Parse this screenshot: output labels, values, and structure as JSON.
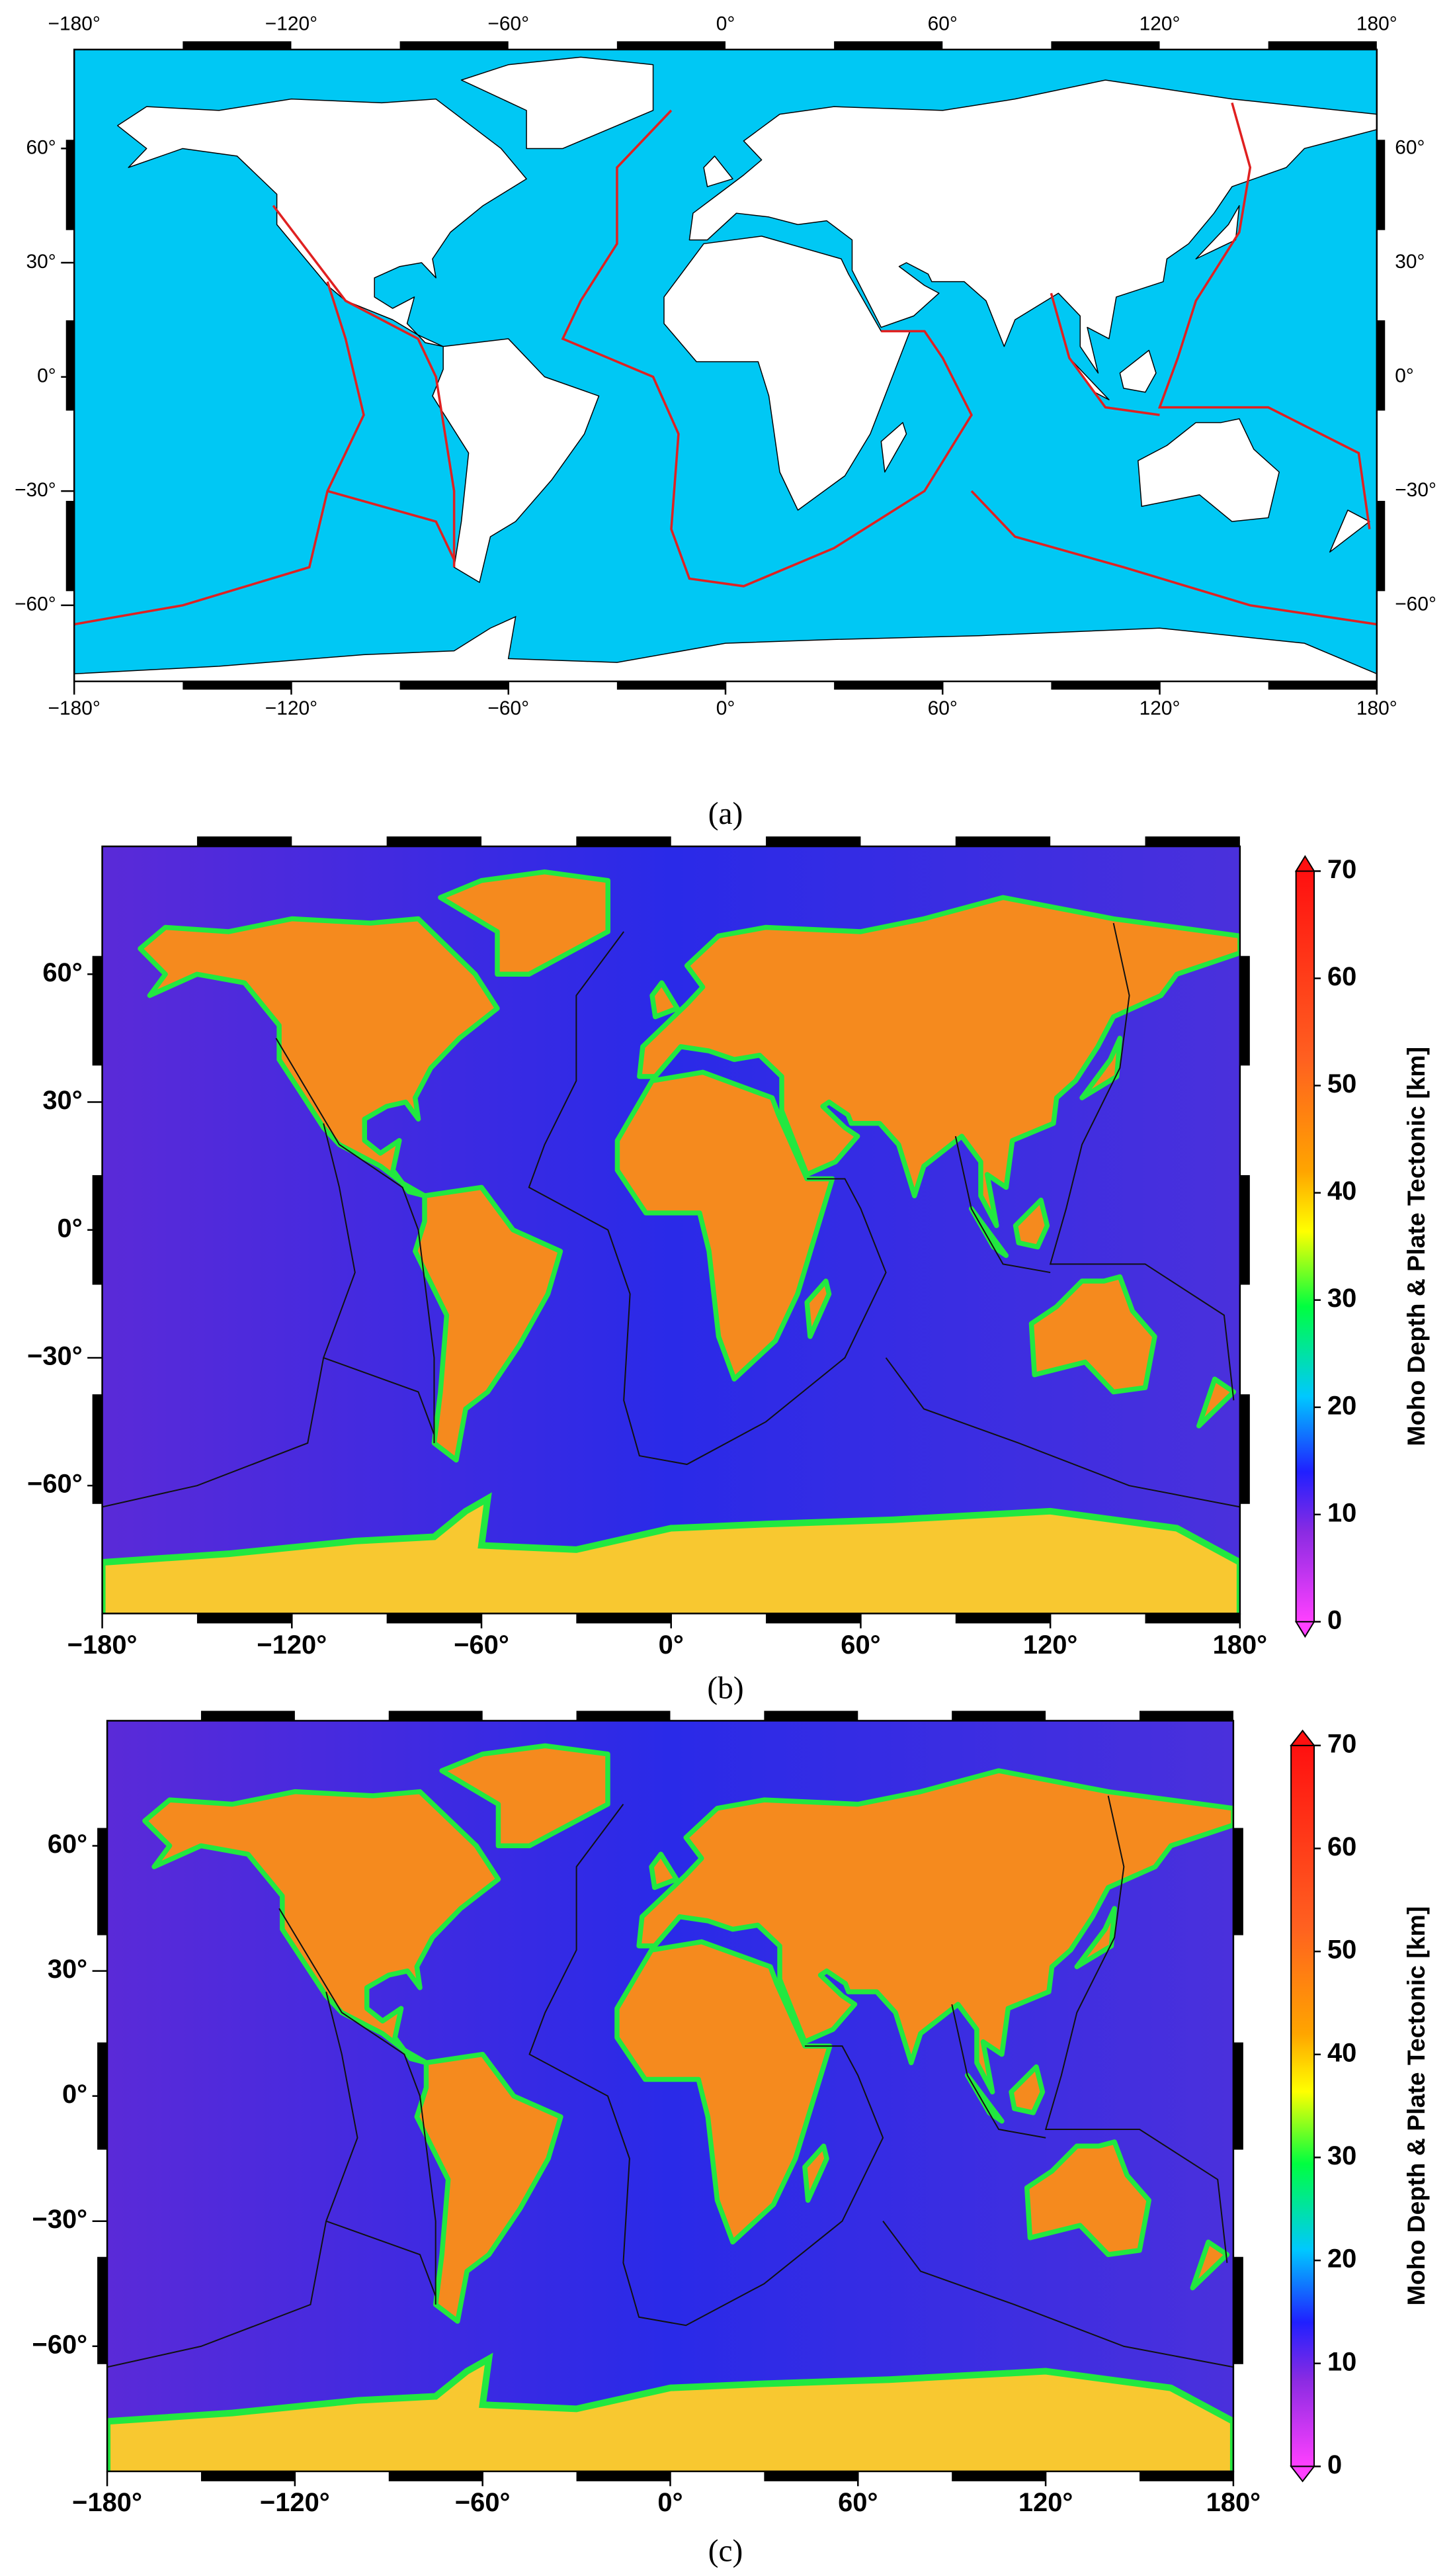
{
  "chart_data": [
    {
      "type": "map",
      "caption": "(a)",
      "xlim": [
        -180,
        180
      ],
      "ylim": [
        -80,
        86
      ],
      "xticks": [
        {
          "value": -180,
          "label": "−180°"
        },
        {
          "value": -120,
          "label": "−120°"
        },
        {
          "value": -60,
          "label": "−60°"
        },
        {
          "value": 0,
          "label": "0°"
        },
        {
          "value": 60,
          "label": "60°"
        },
        {
          "value": 120,
          "label": "120°"
        },
        {
          "value": 180,
          "label": "180°"
        }
      ],
      "yticks": [
        {
          "value": -60,
          "label": "−60°"
        },
        {
          "value": -30,
          "label": "−30°"
        },
        {
          "value": 0,
          "label": "0°"
        },
        {
          "value": 30,
          "label": "30°"
        },
        {
          "value": 60,
          "label": "60°"
        }
      ]
    },
    {
      "type": "map",
      "caption": "(b)",
      "xlim": [
        -180,
        180
      ],
      "ylim": [
        -90,
        90
      ],
      "xticks": [
        {
          "value": -180,
          "label": "−180°"
        },
        {
          "value": -120,
          "label": "−120°"
        },
        {
          "value": -60,
          "label": "−60°"
        },
        {
          "value": 0,
          "label": "0°"
        },
        {
          "value": 60,
          "label": "60°"
        },
        {
          "value": 120,
          "label": "120°"
        },
        {
          "value": 180,
          "label": "180°"
        }
      ],
      "yticks": [
        {
          "value": -60,
          "label": "−60°"
        },
        {
          "value": -30,
          "label": "−30°"
        },
        {
          "value": 0,
          "label": "0°"
        },
        {
          "value": 30,
          "label": "30°"
        },
        {
          "value": 60,
          "label": "60°"
        }
      ],
      "colorbar": {
        "label": "Moho Depth & Plate Tectonic [km]",
        "lim": [
          0,
          70
        ],
        "ticks": [
          0,
          10,
          20,
          30,
          40,
          50,
          60,
          70
        ]
      }
    },
    {
      "type": "map",
      "caption": "(c)",
      "xlim": [
        -180,
        180
      ],
      "ylim": [
        -90,
        90
      ],
      "xticks": [
        {
          "value": -180,
          "label": "−180°"
        },
        {
          "value": -120,
          "label": "−120°"
        },
        {
          "value": -60,
          "label": "−60°"
        },
        {
          "value": 0,
          "label": "0°"
        },
        {
          "value": 60,
          "label": "60°"
        },
        {
          "value": 120,
          "label": "120°"
        },
        {
          "value": 180,
          "label": "180°"
        }
      ],
      "yticks": [
        {
          "value": -60,
          "label": "−60°"
        },
        {
          "value": -30,
          "label": "−30°"
        },
        {
          "value": 0,
          "label": "0°"
        },
        {
          "value": 30,
          "label": "30°"
        },
        {
          "value": 60,
          "label": "60°"
        }
      ],
      "colorbar": {
        "label": "Moho Depth & Plate Tectonic [km]",
        "lim": [
          0,
          70
        ],
        "ticks": [
          0,
          10,
          20,
          30,
          40,
          50,
          60,
          70
        ]
      }
    }
  ]
}
